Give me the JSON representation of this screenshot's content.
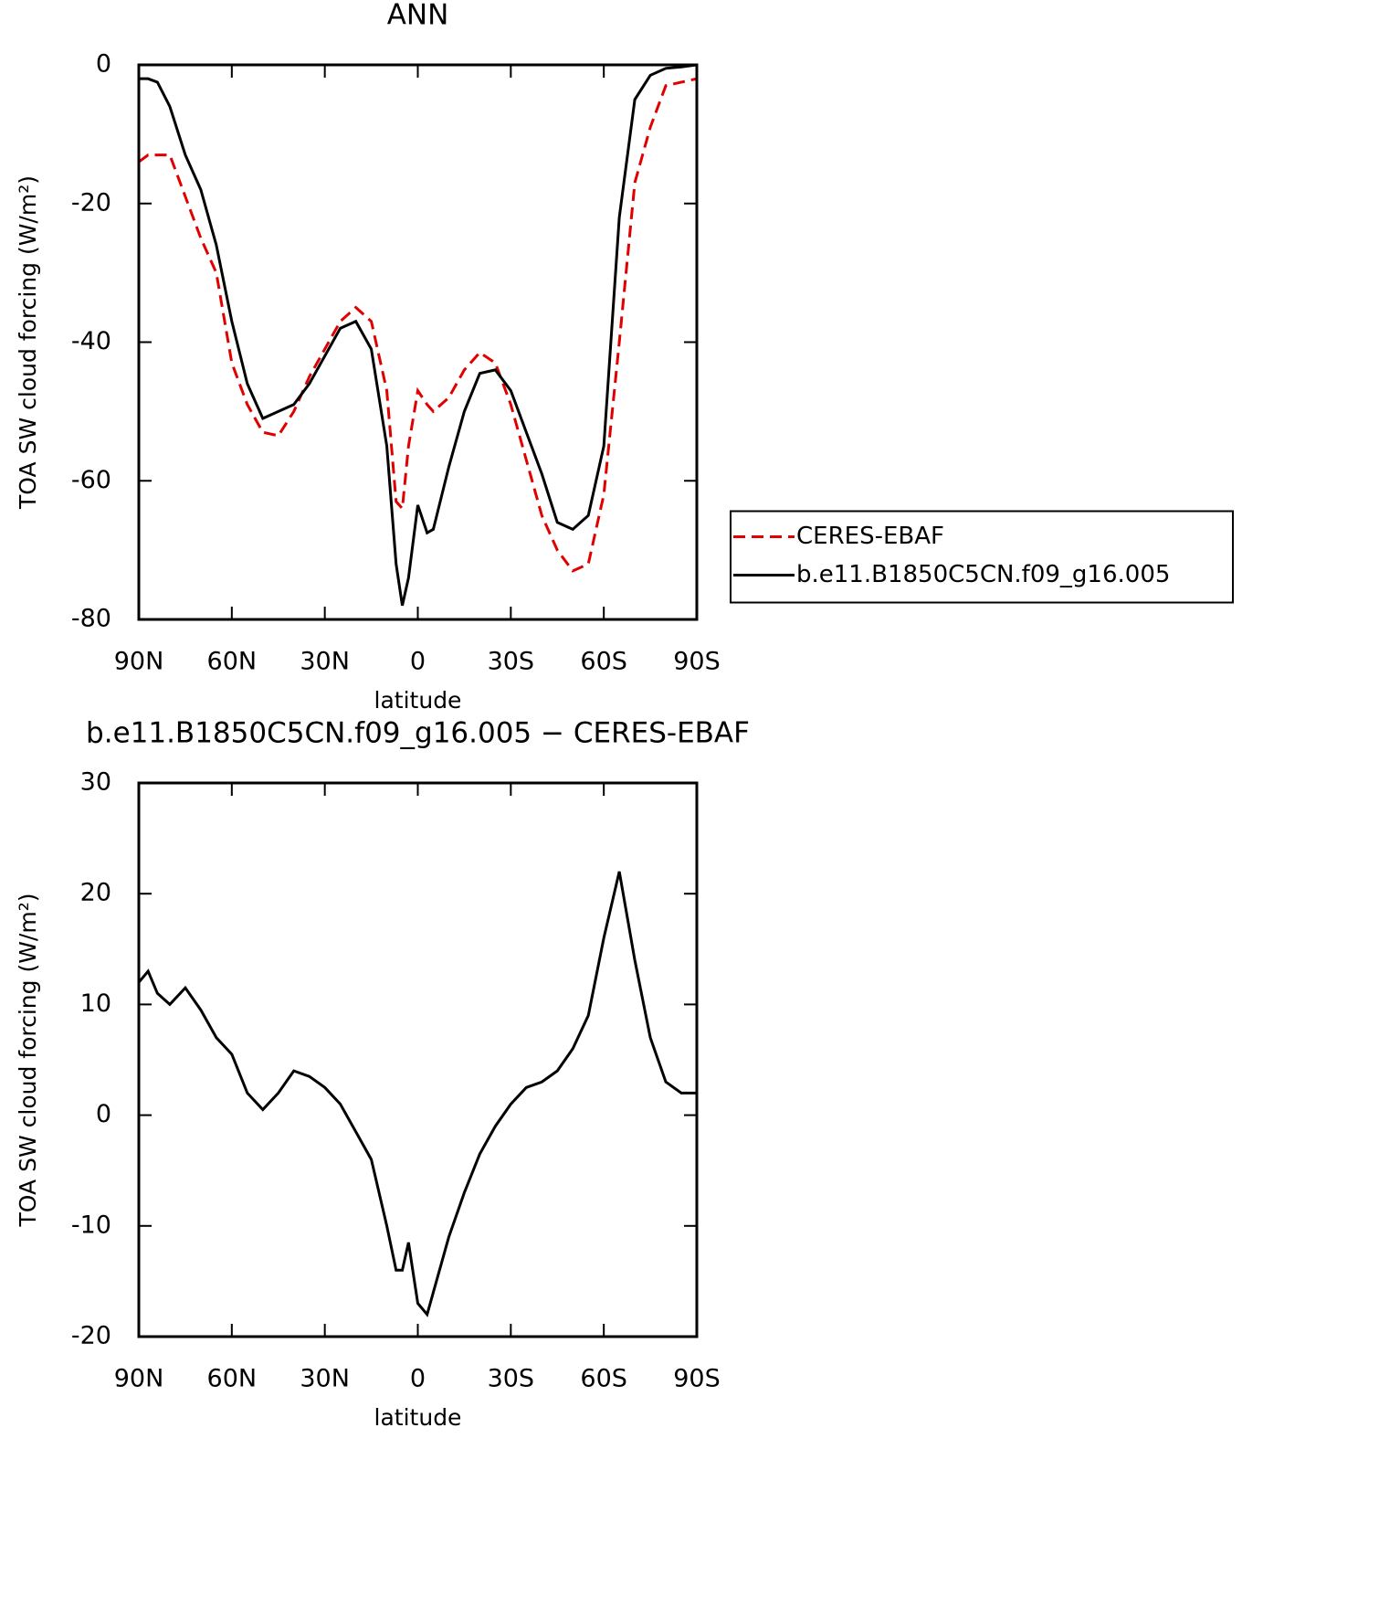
{
  "chart_data": [
    {
      "type": "line",
      "title": "ANN",
      "x_label": "latitude",
      "y_label": "TOA SW cloud forcing (W/m²)",
      "x": [
        90,
        87,
        84,
        80,
        75,
        70,
        65,
        60,
        55,
        50,
        45,
        40,
        35,
        30,
        25,
        20,
        15,
        10,
        7,
        5,
        3,
        0,
        -3,
        -5,
        -10,
        -15,
        -20,
        -25,
        -30,
        -35,
        -40,
        -45,
        -50,
        -55,
        -60,
        -65,
        -70,
        -75,
        -80,
        -85,
        -90
      ],
      "series": [
        {
          "name": "CERES-EBAF",
          "color": "#e00000",
          "dash": true,
          "values": [
            -14,
            -13,
            -13,
            -13,
            -19,
            -25,
            -30,
            -43,
            -49,
            -53,
            -53.5,
            -50,
            -45,
            -41,
            -37,
            -35,
            -37,
            -47,
            -63,
            -64,
            -55,
            -47,
            -49,
            -50,
            -48,
            -44,
            -41.5,
            -43,
            -49,
            -57,
            -65,
            -70,
            -73,
            -72,
            -62,
            -40,
            -17,
            -9,
            -3,
            -2.5,
            -2
          ]
        },
        {
          "name": "b.e11.B1850C5CN.f09_g16.005",
          "color": "#000000",
          "dash": false,
          "values": [
            -2,
            -2,
            -2.5,
            -6,
            -13,
            -18,
            -26,
            -37,
            -46,
            -51,
            -50,
            -49,
            -46,
            -42,
            -38,
            -37,
            -41,
            -55,
            -72,
            -78,
            -74,
            -63.5,
            -67.5,
            -67,
            -58,
            -50,
            -44.5,
            -44,
            -47,
            -53,
            -59,
            -66,
            -67,
            -65,
            -55,
            -22,
            -5,
            -1.5,
            -0.5,
            -0.3,
            0
          ]
        }
      ],
      "xlim": [
        90,
        -90
      ],
      "xticks": [
        {
          "value": 90,
          "label": "90N"
        },
        {
          "value": 60,
          "label": "60N"
        },
        {
          "value": 30,
          "label": "30N"
        },
        0,
        {
          "value": -30,
          "label": "30S"
        },
        {
          "value": -60,
          "label": "60S"
        },
        {
          "value": -90,
          "label": "90S"
        }
      ],
      "ylim": [
        -80,
        0
      ],
      "yticks": [
        0,
        -20,
        -40,
        -60,
        -80
      ],
      "legend": "right"
    },
    {
      "type": "line",
      "title": "b.e11.B1850C5CN.f09_g16.005 − CERES-EBAF",
      "x_label": "latitude",
      "y_label": "TOA SW cloud forcing (W/m²)",
      "x": [
        90,
        87,
        84,
        80,
        75,
        70,
        65,
        60,
        55,
        50,
        45,
        40,
        35,
        30,
        25,
        20,
        15,
        10,
        7,
        5,
        3,
        0,
        -3,
        -5,
        -10,
        -15,
        -20,
        -25,
        -30,
        -35,
        -40,
        -45,
        -50,
        -55,
        -60,
        -65,
        -70,
        -75,
        -80,
        -85,
        -90
      ],
      "series": [
        {
          "color": "#000000",
          "dash": false,
          "values": [
            12,
            13,
            11,
            10,
            11.5,
            9.5,
            7,
            5.5,
            2,
            0.5,
            2,
            4,
            3.5,
            2.5,
            1,
            -1.5,
            -4,
            -10,
            -14,
            -14,
            -11.5,
            -17,
            -18,
            -16,
            -11,
            -7,
            -3.5,
            -1,
            1,
            2.5,
            3,
            4,
            6,
            9,
            16,
            22,
            14,
            7,
            3,
            2,
            2
          ]
        }
      ],
      "xlim": [
        90,
        -90
      ],
      "xticks": [
        {
          "value": 90,
          "label": "90N"
        },
        {
          "value": 60,
          "label": "60N"
        },
        {
          "value": 30,
          "label": "30N"
        },
        0,
        {
          "value": -30,
          "label": "30S"
        },
        {
          "value": -60,
          "label": "60S"
        },
        {
          "value": -90,
          "label": "90S"
        }
      ],
      "ylim": [
        -20,
        30
      ],
      "yticks": [
        30,
        20,
        10,
        0,
        -10,
        -20
      ]
    }
  ]
}
